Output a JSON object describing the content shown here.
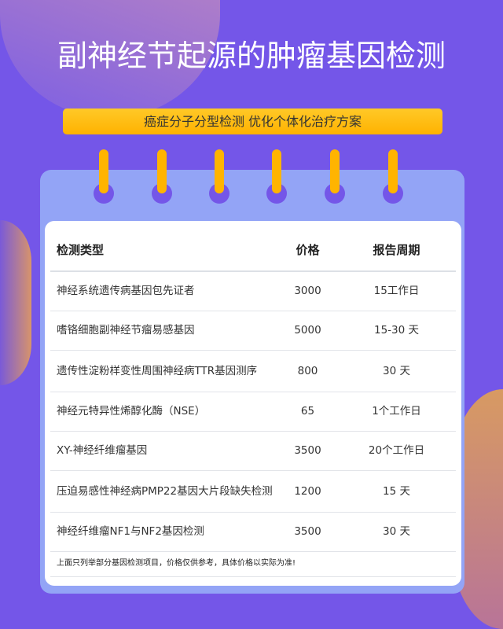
{
  "title": "副神经节起源的肿瘤基因检测",
  "banner": "癌症分子分型检测 优化个体化治疗方案",
  "table": {
    "headers": [
      "检测类型",
      "价格",
      "报告周期"
    ],
    "rows": [
      [
        "神经系统遗传病基因包先证者",
        "3000",
        "15工作日"
      ],
      [
        "嗜铬细胞副神经节瘤易感基因",
        "5000",
        "15-30 天"
      ],
      [
        "遗传性淀粉样变性周围神经病TTR基因测序",
        "800",
        "30 天"
      ],
      [
        "神经元特异性烯醇化酶（NSE）",
        "65",
        "1个工作日"
      ],
      [
        "XY-神经纤维瘤基因",
        "3500",
        "20个工作日"
      ],
      [
        "压迫易感性神经病PMP22基因大片段缺失检测",
        "1200",
        "15 天"
      ],
      [
        "神经纤维瘤NF1与NF2基因检测",
        "3500",
        "30 天"
      ]
    ],
    "note": "上面只列举部分基因检测项目，价格仅供参考，具体价格以实际为准!"
  },
  "colors": {
    "background": "#7456e8",
    "accent": "#ffb400",
    "card": "#93a4f6"
  }
}
